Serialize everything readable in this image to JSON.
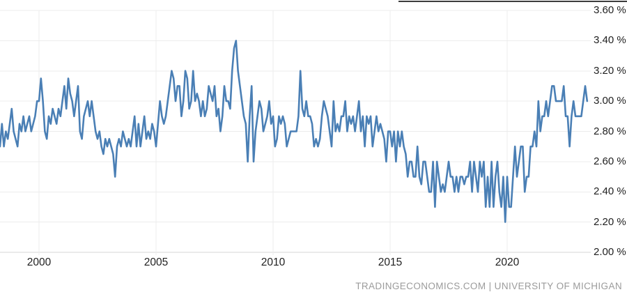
{
  "chart": {
    "attribution": "TRADINGECONOMICS.COM | UNIVERSITY OF MICHIGAN",
    "line_color": "#4a7fb5",
    "grid_color": "#ececec",
    "axis_color": "#d6d6d6",
    "label_color": "#1f1f1f",
    "attribution_color": "#9b9b9b"
  },
  "chart_data": {
    "type": "line",
    "title": "",
    "series_name": "",
    "unit": "%",
    "frequency": "monthly",
    "x_start": "1998-05",
    "x_end": "2023-06",
    "ylim": [
      2.0,
      3.6
    ],
    "y_step": 0.2,
    "grid": true,
    "legend": "none",
    "y_tick_labels": [
      "3.60 %",
      "3.40 %",
      "3.20 %",
      "3.00 %",
      "2.80 %",
      "2.60 %",
      "2.40 %",
      "2.20 %",
      "2.00 %"
    ],
    "x_tick_labels": [
      "2000",
      "2005",
      "2010",
      "2015",
      "2020"
    ],
    "x_tick_years": [
      2000,
      2005,
      2010,
      2015,
      2020
    ],
    "values": [
      2.7,
      2.85,
      2.7,
      2.8,
      2.75,
      2.85,
      2.95,
      2.8,
      2.75,
      2.7,
      2.85,
      2.8,
      2.9,
      2.8,
      2.85,
      2.9,
      2.8,
      2.85,
      2.9,
      3.0,
      3.0,
      3.15,
      3.0,
      2.8,
      2.75,
      2.9,
      2.85,
      2.95,
      2.9,
      2.85,
      2.95,
      2.9,
      3.0,
      3.1,
      2.95,
      3.15,
      3.05,
      3.0,
      2.9,
      3.0,
      3.1,
      2.8,
      2.75,
      2.9,
      2.95,
      3.0,
      2.9,
      3.0,
      2.9,
      2.8,
      2.75,
      2.8,
      2.7,
      2.65,
      2.75,
      2.7,
      2.75,
      2.7,
      2.65,
      2.5,
      2.7,
      2.75,
      2.7,
      2.8,
      2.75,
      2.7,
      2.75,
      2.7,
      2.8,
      2.9,
      2.7,
      2.85,
      2.7,
      2.8,
      2.9,
      2.75,
      2.8,
      2.75,
      2.85,
      2.8,
      2.7,
      2.85,
      3.0,
      2.9,
      2.85,
      2.9,
      3.0,
      3.1,
      3.2,
      3.15,
      3.0,
      3.1,
      3.1,
      2.9,
      3.0,
      3.2,
      3.15,
      2.95,
      3.0,
      3.2,
      3.0,
      3.05,
      3.0,
      2.9,
      3.0,
      2.9,
      2.95,
      3.1,
      3.05,
      3.0,
      3.1,
      2.9,
      2.95,
      2.8,
      2.9,
      3.1,
      3.0,
      3.0,
      2.95,
      3.2,
      3.35,
      3.4,
      3.2,
      3.1,
      3.0,
      2.9,
      2.85,
      2.6,
      2.9,
      3.1,
      2.6,
      2.8,
      2.9,
      3.0,
      2.95,
      2.8,
      2.85,
      2.9,
      3.0,
      2.85,
      2.9,
      2.7,
      2.75,
      2.9,
      2.85,
      2.9,
      2.85,
      2.7,
      2.75,
      2.8,
      2.8,
      2.8,
      2.8,
      2.9,
      3.2,
      2.95,
      2.9,
      3.0,
      2.9,
      2.9,
      2.85,
      2.7,
      2.75,
      2.7,
      2.75,
      2.9,
      3.0,
      2.95,
      2.9,
      2.8,
      2.7,
      3.0,
      2.8,
      2.85,
      2.8,
      2.9,
      2.9,
      3.0,
      2.8,
      2.9,
      2.85,
      2.9,
      2.8,
      2.9,
      3.0,
      2.8,
      2.9,
      2.7,
      2.9,
      2.85,
      2.9,
      2.7,
      2.8,
      2.9,
      2.8,
      2.85,
      2.8,
      2.75,
      2.6,
      2.8,
      2.8,
      2.7,
      2.8,
      2.6,
      2.8,
      2.7,
      2.8,
      2.7,
      2.65,
      2.5,
      2.6,
      2.6,
      2.5,
      2.5,
      2.7,
      2.5,
      2.45,
      2.6,
      2.6,
      2.5,
      2.4,
      2.4,
      2.6,
      2.3,
      2.6,
      2.5,
      2.4,
      2.45,
      2.4,
      2.5,
      2.6,
      2.5,
      2.5,
      2.4,
      2.5,
      2.4,
      2.5,
      2.5,
      2.45,
      2.5,
      2.5,
      2.6,
      2.4,
      2.6,
      2.5,
      2.4,
      2.6,
      2.5,
      2.6,
      2.3,
      2.5,
      2.3,
      2.6,
      2.3,
      2.5,
      2.6,
      2.4,
      2.3,
      2.5,
      2.2,
      2.5,
      2.3,
      2.3,
      2.5,
      2.7,
      2.5,
      2.6,
      2.7,
      2.7,
      2.4,
      2.5,
      2.5,
      2.7,
      2.7,
      2.8,
      2.7,
      3.0,
      2.8,
      2.9,
      2.9,
      3.0,
      2.9,
      3.0,
      3.1,
      3.1,
      3.0,
      3.0,
      3.0,
      3.0,
      3.1,
      2.9,
      2.9,
      2.7,
      2.9,
      3.0,
      2.9,
      2.9,
      2.9,
      2.9,
      3.0,
      3.1,
      3.0
    ]
  }
}
